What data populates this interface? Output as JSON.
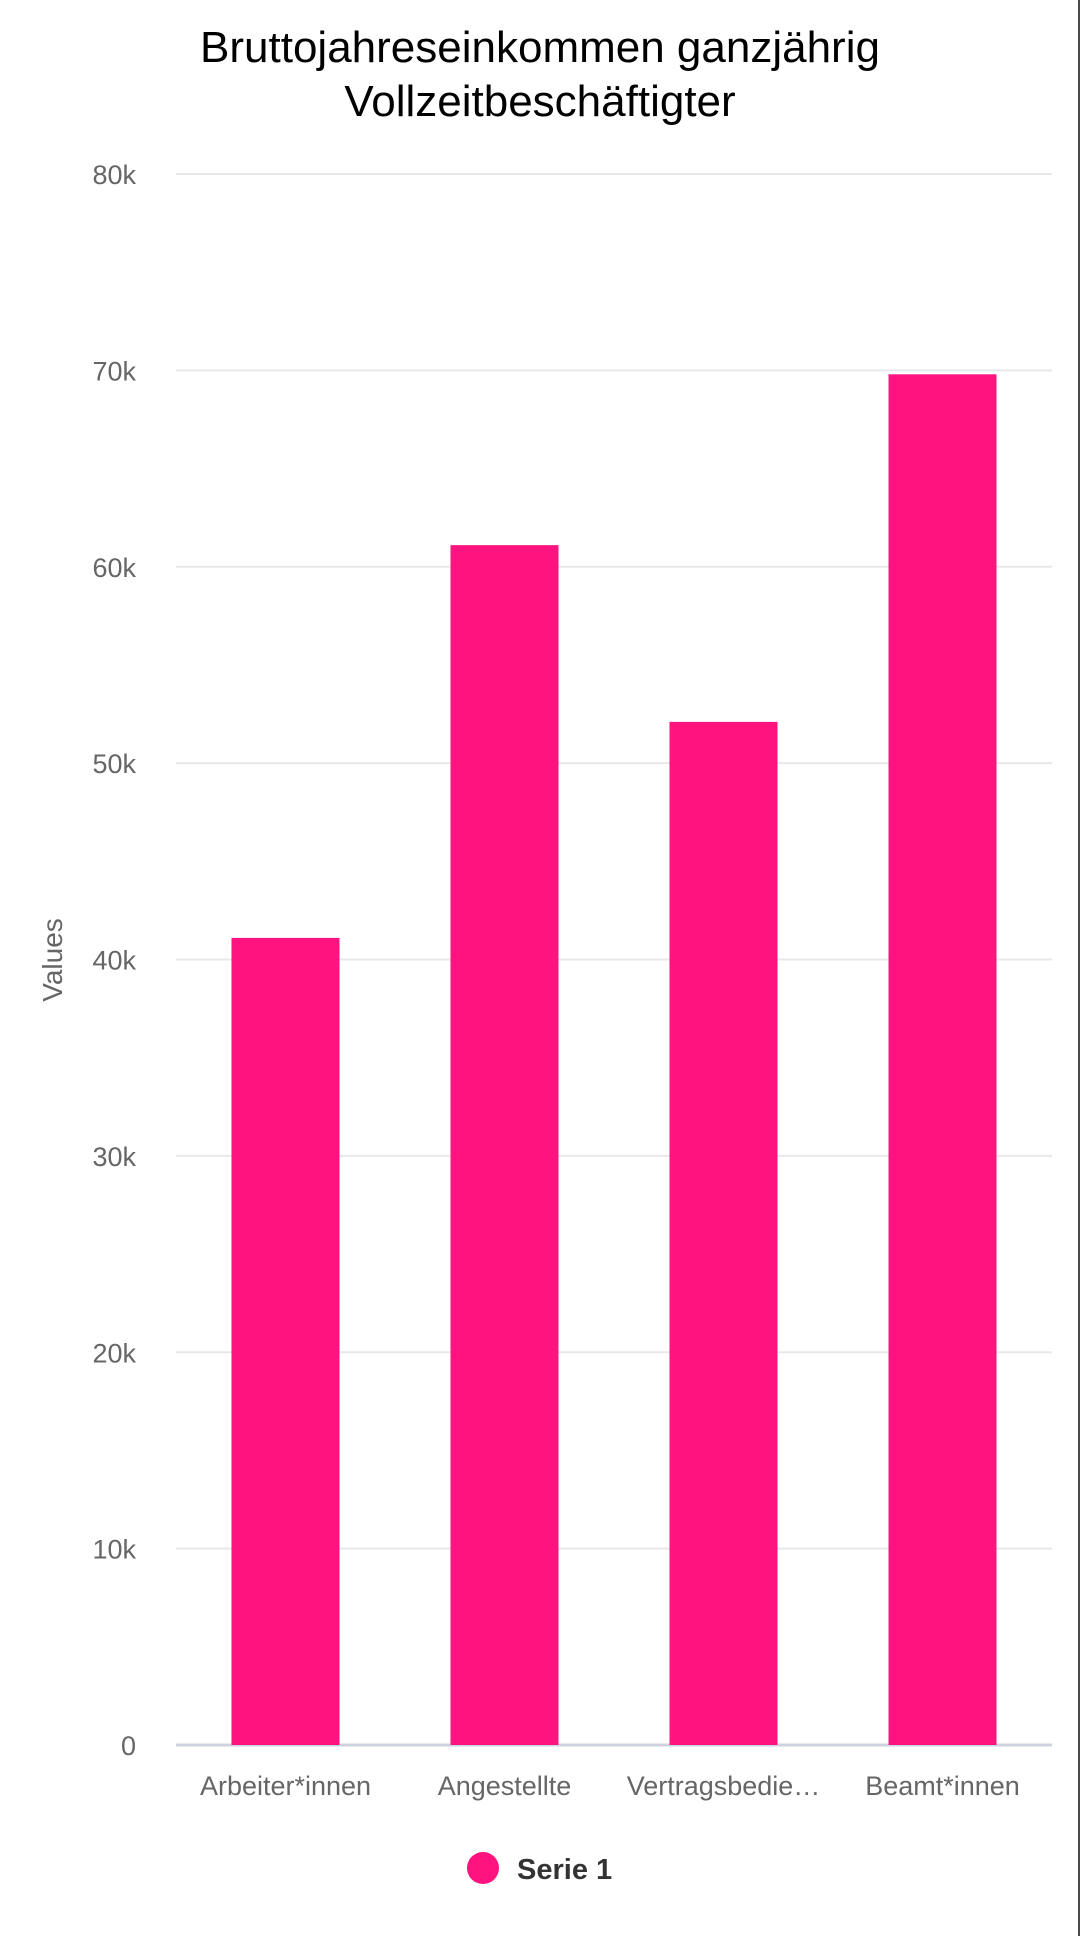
{
  "chart_data": {
    "type": "bar",
    "title_lines": [
      "Bruttojahreseinkommen ganzjährig",
      "Vollzeitbeschäftigter"
    ],
    "categories": [
      "Arbeiter*innen",
      "Angestellte",
      "Vertragsbedie…",
      "Beamt*innen"
    ],
    "series": [
      {
        "name": "Serie 1",
        "values": [
          41100,
          61100,
          52100,
          69800
        ]
      }
    ],
    "ylabel": "Values",
    "xlabel": "",
    "ylim": [
      0,
      80000
    ],
    "yticks": [
      0,
      10000,
      20000,
      30000,
      40000,
      50000,
      60000,
      70000,
      80000
    ],
    "ytick_labels": [
      "0",
      "10k",
      "20k",
      "30k",
      "40k",
      "50k",
      "60k",
      "70k",
      "80k"
    ],
    "grid": true,
    "legend_position": "bottom",
    "colors": {
      "bar": "#ff137f",
      "grid": "#e6e8ec",
      "axis": "#ccd3de",
      "tick_text": "#666666",
      "title": "#000000",
      "legend_text": "#333333"
    }
  }
}
